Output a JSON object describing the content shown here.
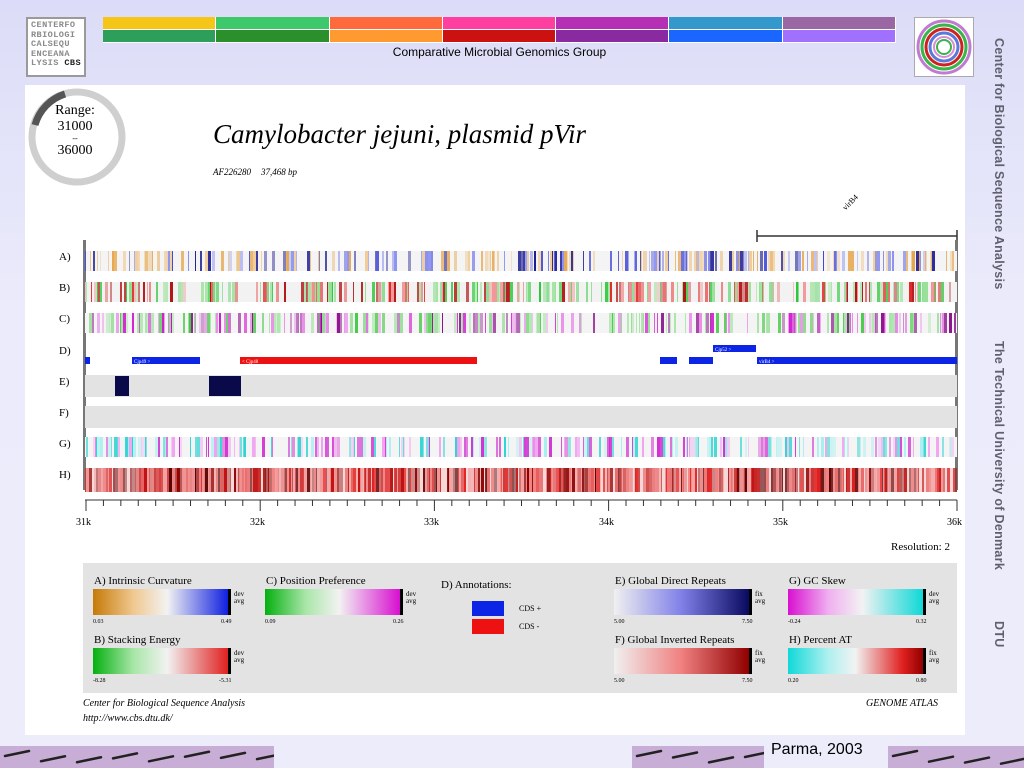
{
  "header": {
    "logo_lines": [
      "CENTERFO",
      "RBIOLOGI",
      "CALSEQU",
      "ENCEANA",
      "LYSIS"
    ],
    "logo_tag": "CBS",
    "group_title": "Comparative Microbial Genomics Group",
    "colorbar_top": [
      "#f5c518",
      "#3dc96b",
      "#ff6a3d",
      "#ff3fa0",
      "#b530b5",
      "#3399cc",
      "#9a66a3"
    ],
    "colorbar_bottom": [
      "#2e9e5b",
      "#2b8f2b",
      "#ff9a30",
      "#cc1111",
      "#8a2aa0",
      "#1a66ff",
      "#a070ff"
    ]
  },
  "side_text": {
    "line1": "Center for Biological Sequence Analysis",
    "line2": "The Technical University of Denmark",
    "line3": "DTU"
  },
  "atlas": {
    "range_label": "Range:",
    "range_start": "31000",
    "range_dash": "--",
    "range_end": "36000",
    "title": "Camylobacter jejuni, plasmid pVir",
    "accession": "AF226280",
    "length": "37,468 bp",
    "gene_label": "virB4",
    "row_labels": [
      "A)",
      "B)",
      "C)",
      "D)",
      "E)",
      "F)",
      "G)",
      "H)"
    ],
    "axis_ticks": [
      "31k",
      "32k",
      "33k",
      "34k",
      "35k",
      "36k"
    ],
    "resolution": "Resolution: 2",
    "cds_labels": {
      "cjp49": "Cjp49 >",
      "cjp48": "< Cjp48",
      "cjp52": "Cjp52 >",
      "virb4": "virB4 >"
    }
  },
  "legend": {
    "a_title": "A) Intrinsic Curvature",
    "a_min": "0.03",
    "a_max": "0.49",
    "b_title": "B) Stacking Energy",
    "b_min": "-8.28",
    "b_max": "-5.31",
    "c_title": "C) Position Preference",
    "c_min": "0.09",
    "c_max": "0.26",
    "d_title": "D) Annotations:",
    "d_plus": "CDS +",
    "d_minus": "CDS -",
    "e_title": "E) Global Direct Repeats",
    "e_min": "5.00",
    "e_max": "7.50",
    "f_title": "F) Global Inverted Repeats",
    "f_min": "5.00",
    "f_max": "7.50",
    "g_title": "G) GC Skew",
    "g_min": "-0.24",
    "g_max": "0.32",
    "h_title": "H) Percent AT",
    "h_min": "0.20",
    "h_max": "0.80",
    "dev": "dev",
    "avg": "avg",
    "fix": "fix"
  },
  "footer": {
    "left1": "Center for Biological Sequence Analysis",
    "left2": "http://www.cbs.dtu.dk/",
    "right": "GENOME ATLAS"
  },
  "caption": "Parma, 2003",
  "colors": {
    "cds_plus": "#0b24e6",
    "cds_minus": "#ee1111",
    "repeat": "#0a0a4a"
  }
}
